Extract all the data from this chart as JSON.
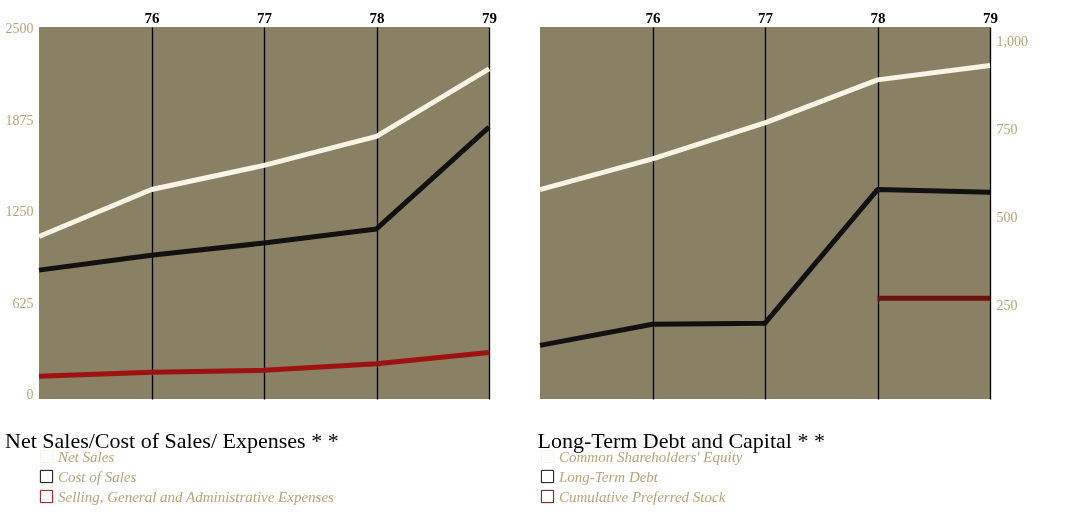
{
  "chart_data": [
    {
      "type": "line",
      "title": "Net Sales/Cost of Sales/ Expenses * *",
      "x": [
        75,
        76,
        77,
        78,
        79
      ],
      "xlim": [
        75,
        79
      ],
      "xticks": [
        76,
        77,
        78,
        79
      ],
      "ylim": [
        -30,
        2510
      ],
      "yticks": [
        0,
        625,
        1250,
        1875,
        2500
      ],
      "grid": "x",
      "legend": "bottom",
      "line_style": "solid",
      "marker": "none",
      "series": [
        {
          "name": "Net Sales",
          "color": "#f8f5e6",
          "values": [
            1080,
            1400,
            1565,
            1763,
            2224
          ]
        },
        {
          "name": "Cost of Sales",
          "color": "#111111",
          "values": [
            850,
            952,
            1035,
            1131,
            1827
          ]
        },
        {
          "name": "Selling, General and Administrative Expenses",
          "color": "#9e1212",
          "values": [
            125,
            153,
            166,
            211,
            288
          ]
        }
      ]
    },
    {
      "type": "line",
      "title": "Long-Term Debt and Capital * *",
      "x": [
        75,
        76,
        77,
        78,
        79
      ],
      "xlim": [
        75,
        79
      ],
      "xticks": [
        76,
        77,
        78,
        79
      ],
      "y2lim": [
        -15,
        1040
      ],
      "y2ticks": [
        {
          "value": 1000,
          "label": "1,000"
        },
        750,
        500,
        250
      ],
      "grid": "x",
      "legend": "bottom",
      "line_style": "solid",
      "marker": "none",
      "series": [
        {
          "name": "Common Shareholders' Equity",
          "color": "#f8f5e6",
          "axis": "y2",
          "values": [
            579,
            666,
            768,
            890,
            931
          ]
        },
        {
          "name": "Long-Term Debt",
          "color": "#111111",
          "axis": "y2",
          "values": [
            137,
            197,
            200,
            579,
            571
          ]
        },
        {
          "name": "Cumulative Preferred Stock",
          "color": "#6e1210",
          "axis": "y2",
          "values": [
            null,
            null,
            null,
            271,
            271
          ]
        }
      ]
    }
  ]
}
